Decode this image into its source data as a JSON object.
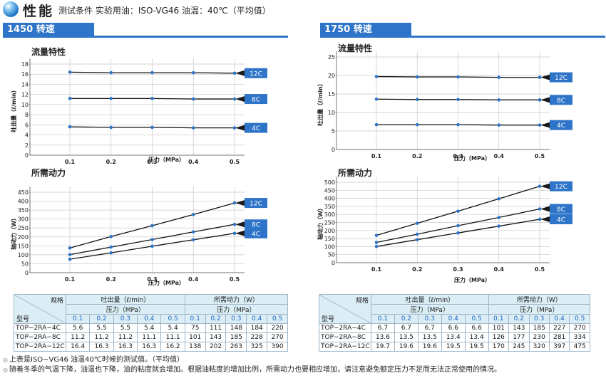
{
  "header": {
    "title": "性能",
    "conditions": "测试条件 实验用油：ISO-VG46 油温：40℃（平均值）",
    "icon": "blue-sphere-icon"
  },
  "colors": {
    "accent": "#2e74c8",
    "table_header": "#dbeef6",
    "blue_text": "#1b64c3"
  },
  "panels": [
    {
      "tab": "1450 转速"
    },
    {
      "tab": "1750 转速"
    }
  ],
  "chart_data": [
    {
      "type": "line",
      "title": "流量特性",
      "ylabel": "吐出量（ℓ/min）",
      "xlabel": "压力（MPa）",
      "x": [
        0.1,
        0.2,
        0.3,
        0.4,
        0.5
      ],
      "xlim": [
        0.1,
        0.5
      ],
      "ylim": [
        0,
        18
      ],
      "yticks": [
        0,
        2,
        4,
        6,
        8,
        10,
        12,
        14,
        16,
        18
      ],
      "xticks": [
        "0.1",
        "0.2",
        "0.3",
        "0.4",
        "0.5"
      ],
      "grid": true,
      "series": [
        {
          "name": "12C",
          "values": [
            16.4,
            16.3,
            16.3,
            16.3,
            16.2
          ]
        },
        {
          "name": "8C",
          "values": [
            11.2,
            11.2,
            11.2,
            11.1,
            11.1
          ]
        },
        {
          "name": "4C",
          "values": [
            5.6,
            5.5,
            5.5,
            5.4,
            5.4
          ]
        }
      ]
    },
    {
      "type": "line",
      "title": "所需动力",
      "ylabel": "轴动力（W）",
      "xlabel": "压力（MPa）",
      "x": [
        0.1,
        0.2,
        0.3,
        0.4,
        0.5
      ],
      "xlim": [
        0.1,
        0.5
      ],
      "ylim": [
        0,
        450
      ],
      "yticks": [
        0,
        50,
        100,
        150,
        200,
        250,
        300,
        350,
        400,
        450
      ],
      "xticks": [
        "0.1",
        "0.2",
        "0.3",
        "0.4",
        "0.5"
      ],
      "grid": true,
      "series": [
        {
          "name": "12C",
          "values": [
            138,
            202,
            263,
            325,
            390
          ]
        },
        {
          "name": "8C",
          "values": [
            101,
            143,
            185,
            228,
            270
          ]
        },
        {
          "name": "4C",
          "values": [
            75,
            111,
            148,
            184,
            220
          ]
        }
      ]
    },
    {
      "type": "line",
      "title": "流量特性",
      "ylabel": "吐出量（ℓ/min）",
      "xlabel": "压力（MPa）",
      "x": [
        0.1,
        0.2,
        0.3,
        0.4,
        0.5
      ],
      "xlim": [
        0.1,
        0.5
      ],
      "ylim": [
        0,
        25
      ],
      "yticks": [
        0,
        5,
        10,
        15,
        20,
        25
      ],
      "xticks": [
        "0.1",
        "0.2",
        "0.3",
        "0.4",
        "0.5"
      ],
      "grid": true,
      "series": [
        {
          "name": "12C",
          "values": [
            19.7,
            19.6,
            19.6,
            19.5,
            19.5
          ]
        },
        {
          "name": "8C",
          "values": [
            13.6,
            13.5,
            13.5,
            13.4,
            13.4
          ]
        },
        {
          "name": "4C",
          "values": [
            6.7,
            6.7,
            6.7,
            6.6,
            6.6
          ]
        }
      ]
    },
    {
      "type": "line",
      "title": "所需动力",
      "ylabel": "轴动力（W）",
      "xlabel": "压力（MPa）",
      "x": [
        0.1,
        0.2,
        0.3,
        0.4,
        0.5
      ],
      "xlim": [
        0.1,
        0.5
      ],
      "ylim": [
        0,
        500
      ],
      "yticks": [
        0,
        50,
        100,
        150,
        200,
        250,
        300,
        350,
        400,
        450,
        500
      ],
      "xticks": [
        "0.1",
        "0.2",
        "0.3",
        "0.4",
        "0.5"
      ],
      "grid": true,
      "series": [
        {
          "name": "12C",
          "values": [
            170,
            245,
            320,
            397,
            475
          ]
        },
        {
          "name": "8C",
          "values": [
            126,
            177,
            230,
            281,
            334
          ]
        },
        {
          "name": "4C",
          "values": [
            101,
            143,
            185,
            227,
            270
          ]
        }
      ]
    }
  ],
  "tables": [
    {
      "spec": "规格",
      "model": "型号",
      "flow_header": "吐出量（ℓ/min）",
      "power_header": "所需动力（W）",
      "pressure_header": "压力（MPa）",
      "pressures": [
        "0.1",
        "0.2",
        "0.3",
        "0.4",
        "0.5"
      ],
      "rows": [
        {
          "model": "TOP−2RA−4C",
          "flow": [
            "5.6",
            "5.5",
            "5.5",
            "5.4",
            "5.4"
          ],
          "power": [
            "75",
            "111",
            "148",
            "184",
            "220"
          ]
        },
        {
          "model": "TOP−2RA−8C",
          "flow": [
            "11.2",
            "11.2",
            "11.2",
            "11.1",
            "11.1"
          ],
          "power": [
            "101",
            "143",
            "185",
            "228",
            "270"
          ]
        },
        {
          "model": "TOP−2RA−12C",
          "flow": [
            "16.4",
            "16.3",
            "16.3",
            "16.3",
            "16.2"
          ],
          "power": [
            "138",
            "202",
            "263",
            "325",
            "390"
          ]
        }
      ]
    },
    {
      "spec": "规格",
      "model": "型号",
      "flow_header": "吐出量（ℓ/min）",
      "power_header": "所需动力（W）",
      "pressure_header": "压力（MPa）",
      "pressures": [
        "0.1",
        "0.2",
        "0.3",
        "0.4",
        "0.5"
      ],
      "rows": [
        {
          "model": "TOP−2RA−4C",
          "flow": [
            "6.7",
            "6.7",
            "6.7",
            "6.6",
            "6.6"
          ],
          "power": [
            "101",
            "143",
            "185",
            "227",
            "270"
          ]
        },
        {
          "model": "TOP−2RA−8C",
          "flow": [
            "13.6",
            "13.5",
            "13.5",
            "13.4",
            "13.4"
          ],
          "power": [
            "126",
            "177",
            "230",
            "281",
            "334"
          ]
        },
        {
          "model": "TOP−2RA−12C",
          "flow": [
            "19.7",
            "19.6",
            "19.6",
            "19.5",
            "19.5"
          ],
          "power": [
            "170",
            "245",
            "320",
            "397",
            "475"
          ]
        }
      ]
    }
  ],
  "notes": [
    "上表是ISO−VG46 油温40℃时候的测试值。（平均值）",
    "随着冬季的气温下降，油温也下降，油的粘度就会增加。根据油粘度的增加比例，所需动力也要相应增加，请注意避免额定压力不足而无法正常使用的情况。"
  ]
}
